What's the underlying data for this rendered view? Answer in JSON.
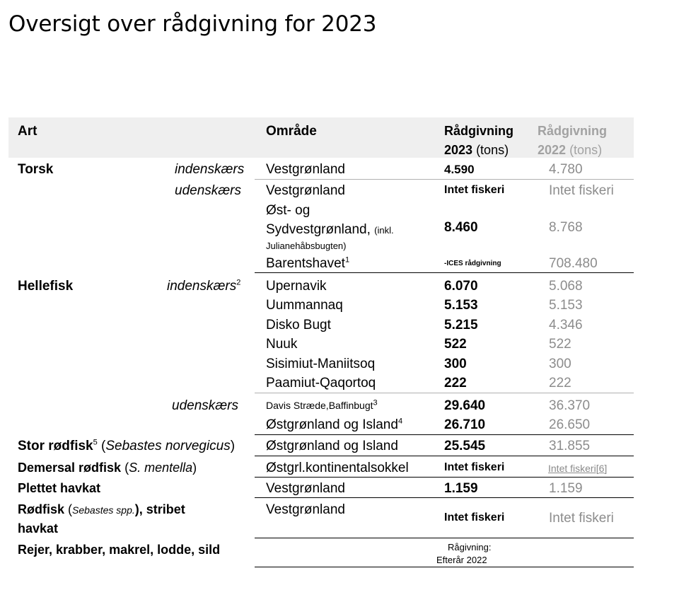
{
  "title": "Oversigt over rådgivning for 2023",
  "header": {
    "art": "Art",
    "omrade": "Område",
    "r2023_l1": "Rådgivning",
    "r2023_y": "2023",
    "r2023_u": "(tons)",
    "r2022_l1": "Rådgivning",
    "r2022_y": "2022",
    "r2022_u": "(tons)"
  },
  "torsk": {
    "name": "Torsk",
    "sub1": "indenskærs",
    "area1": "Vestgrønland",
    "v23_1": "4.590",
    "v22_1": "4.780",
    "sub2": "udenskærs",
    "area2": "Vestgrønland",
    "v23_2": "Intet fiskeri",
    "v22_2": "Intet fiskeri",
    "area3_l1": "Øst- og",
    "area3_l2": "Sydvestgrønland,",
    "area3_note_a": "(inkl.",
    "area3_note_b": "Julianehåbsbugten)",
    "v23_3": "8.460",
    "v22_3": "8.768",
    "area4": "Barentshavet",
    "area4_sup": "1",
    "v23_4": "-ICES rådgivning",
    "v22_4": "708.480"
  },
  "hellefisk": {
    "name": "Hellefisk",
    "sub1": "indenskærs",
    "sub1_sup": "2",
    "rows": [
      {
        "area": "Upernavik",
        "v23": "6.070",
        "v22": "5.068"
      },
      {
        "area": "Uummannaq",
        "v23": "5.153",
        "v22": "5.153"
      },
      {
        "area": "Disko Bugt",
        "v23": "5.215",
        "v22": "4.346"
      },
      {
        "area": "Nuuk",
        "v23": "522",
        "v22": "522"
      },
      {
        "area": "Sisimiut-Maniitsoq",
        "v23": "300",
        "v22": "300"
      },
      {
        "area": "Paamiut-Qaqortoq",
        "v23": "222",
        "v22": "222"
      }
    ],
    "sub2": "udenskærs",
    "area_d": "Davis Stræde,Baffinbugt",
    "area_d_sup": "3",
    "v23_d": "29.640",
    "v22_d": "36.370",
    "area_o": "Østgrønland og Island",
    "area_o_sup": "4",
    "v23_o": "26.710",
    "v22_o": "26.650"
  },
  "stor": {
    "name": "Stor rødfisk",
    "sup": "5",
    "latin": "Sebastes norvegicus",
    "area": "Østgrønland og Island",
    "v23": "25.545",
    "v22": "31.855"
  },
  "demersal": {
    "name": "Demersal rødfisk",
    "latin": "S. mentella",
    "area": "Østgrl.kontinentalsokkel",
    "v23": "Intet fiskeri",
    "v22": "Intet fiskeri[6]"
  },
  "plettet": {
    "name": "Plettet havkat",
    "area": "Vestgrønland",
    "v23": "1.159",
    "v22": "1.159"
  },
  "rodfisk": {
    "name": "Rødfisk",
    "latin": "Sebastes spp.",
    "rest": "), stribet",
    "line2": "havkat",
    "area": "Vestgrønland",
    "v23": "Intet fiskeri",
    "v22": "Intet fiskeri"
  },
  "rejer": {
    "name": "Rejer, krabber, makrel, lodde, sild",
    "v23_l1": "Rågivning:",
    "v23_l2": "Efterår 2022"
  }
}
